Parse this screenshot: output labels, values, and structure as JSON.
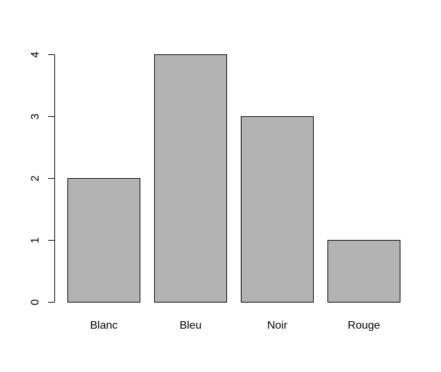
{
  "chart_data": {
    "type": "bar",
    "categories": [
      "Blanc",
      "Bleu",
      "Noir",
      "Rouge"
    ],
    "values": [
      2,
      4,
      3,
      1
    ],
    "title": "",
    "xlabel": "",
    "ylabel": "",
    "ylim": [
      0,
      4
    ],
    "y_ticks": [
      "0",
      "1",
      "2",
      "3",
      "4"
    ],
    "grid": false,
    "legend": "none",
    "colors": {
      "bar_fill": "#b3b3b3",
      "bar_stroke": "#000000",
      "axis": "#000000",
      "background": "#ffffff"
    }
  }
}
